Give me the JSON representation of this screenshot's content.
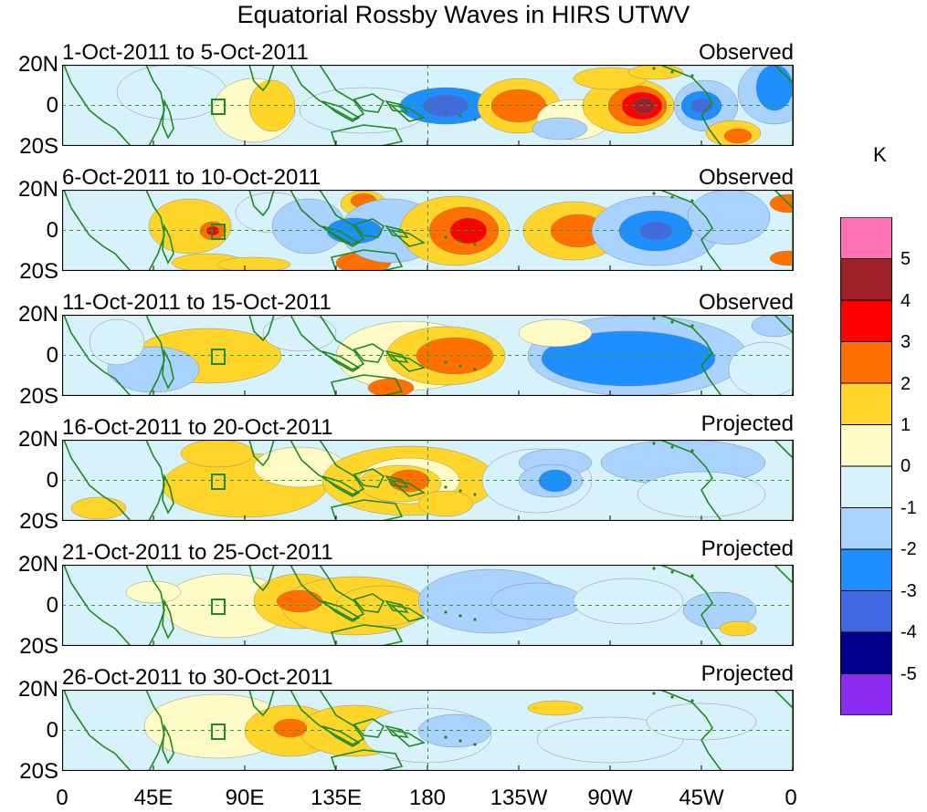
{
  "title": "Equatorial Rossby Waves in HIRS UTWV",
  "panels": [
    {
      "period": "1-Oct-2011 to 5-Oct-2011",
      "status": "Observed"
    },
    {
      "period": "6-Oct-2011 to 10-Oct-2011",
      "status": "Observed"
    },
    {
      "period": "11-Oct-2011 to 15-Oct-2011",
      "status": "Observed"
    },
    {
      "period": "16-Oct-2011 to 20-Oct-2011",
      "status": "Projected"
    },
    {
      "period": "21-Oct-2011 to 25-Oct-2011",
      "status": "Projected"
    },
    {
      "period": "26-Oct-2011 to 30-Oct-2011",
      "status": "Projected"
    }
  ],
  "lat_labels": [
    "20N",
    "0",
    "20S"
  ],
  "lon_labels": [
    "0",
    "45E",
    "90E",
    "135E",
    "180",
    "135W",
    "90W",
    "45W",
    "0"
  ],
  "colorbar": {
    "unit": "K",
    "labels": [
      "5",
      "4",
      "3",
      "2",
      "1",
      "0",
      "-1",
      "-2",
      "-3",
      "-4",
      "-5"
    ],
    "colors": [
      "#ff70b4",
      "#a0202a",
      "#ff0000",
      "#ff7000",
      "#ffd52a",
      "#fffbc6",
      "#d8f2fb",
      "#a9d2ff",
      "#1e8fff",
      "#4169e1",
      "#00008c",
      "#8b2bf0"
    ]
  },
  "colors": {
    "coast": "#1f8a1f",
    "grid": "#2e9e2e"
  }
}
